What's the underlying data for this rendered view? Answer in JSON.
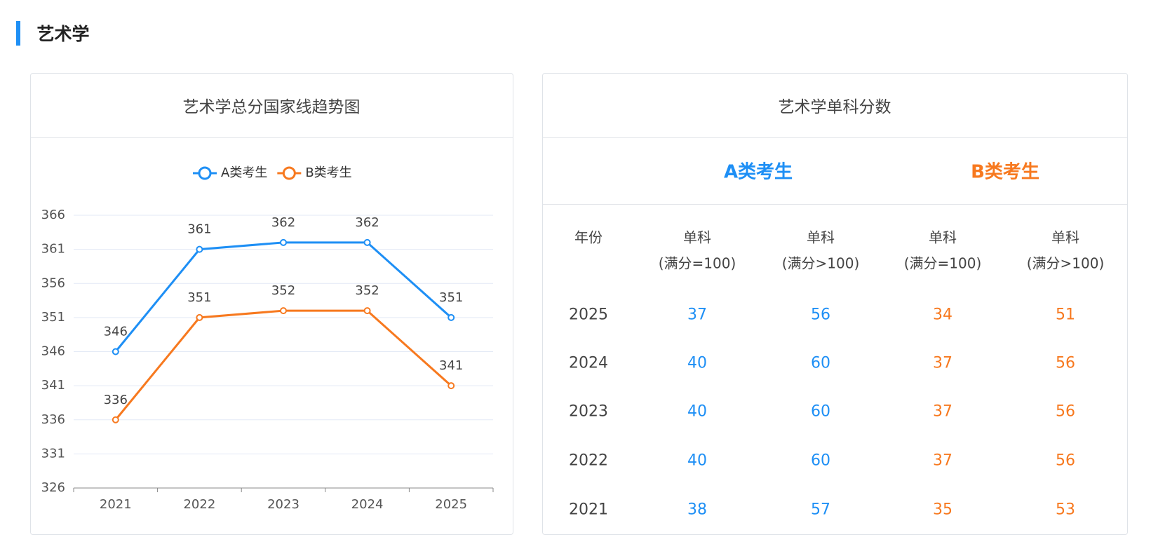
{
  "section_title": "艺术学",
  "chart_data": {
    "type": "line",
    "title": "艺术学总分国家线趋势图",
    "categories": [
      "2021",
      "2022",
      "2023",
      "2024",
      "2025"
    ],
    "series": [
      {
        "name": "A类考生",
        "color": "#1e8ff5",
        "values": [
          346,
          361,
          362,
          362,
          351
        ]
      },
      {
        "name": "B类考生",
        "color": "#f7791f",
        "values": [
          336,
          351,
          352,
          352,
          341
        ]
      }
    ],
    "ylim": [
      326,
      366
    ],
    "yticks": [
      326,
      331,
      336,
      341,
      346,
      351,
      356,
      361,
      366
    ],
    "grid": true,
    "legend": "top"
  },
  "table": {
    "title": "艺术学单科分数",
    "groups": [
      {
        "name": "A类考生",
        "color": "#1e8ff5"
      },
      {
        "name": "B类考生",
        "color": "#f7791f"
      }
    ],
    "header": [
      [
        "年份"
      ],
      [
        "单科",
        "(满分=100)"
      ],
      [
        "单科",
        "(满分>100)"
      ],
      [
        "单科",
        "(满分=100)"
      ],
      [
        "单科",
        "(满分>100)"
      ]
    ],
    "rows": [
      [
        2025,
        37,
        56,
        34,
        51
      ],
      [
        2024,
        40,
        60,
        37,
        56
      ],
      [
        2023,
        40,
        60,
        37,
        56
      ],
      [
        2022,
        40,
        60,
        37,
        56
      ],
      [
        2021,
        38,
        57,
        35,
        53
      ]
    ]
  }
}
